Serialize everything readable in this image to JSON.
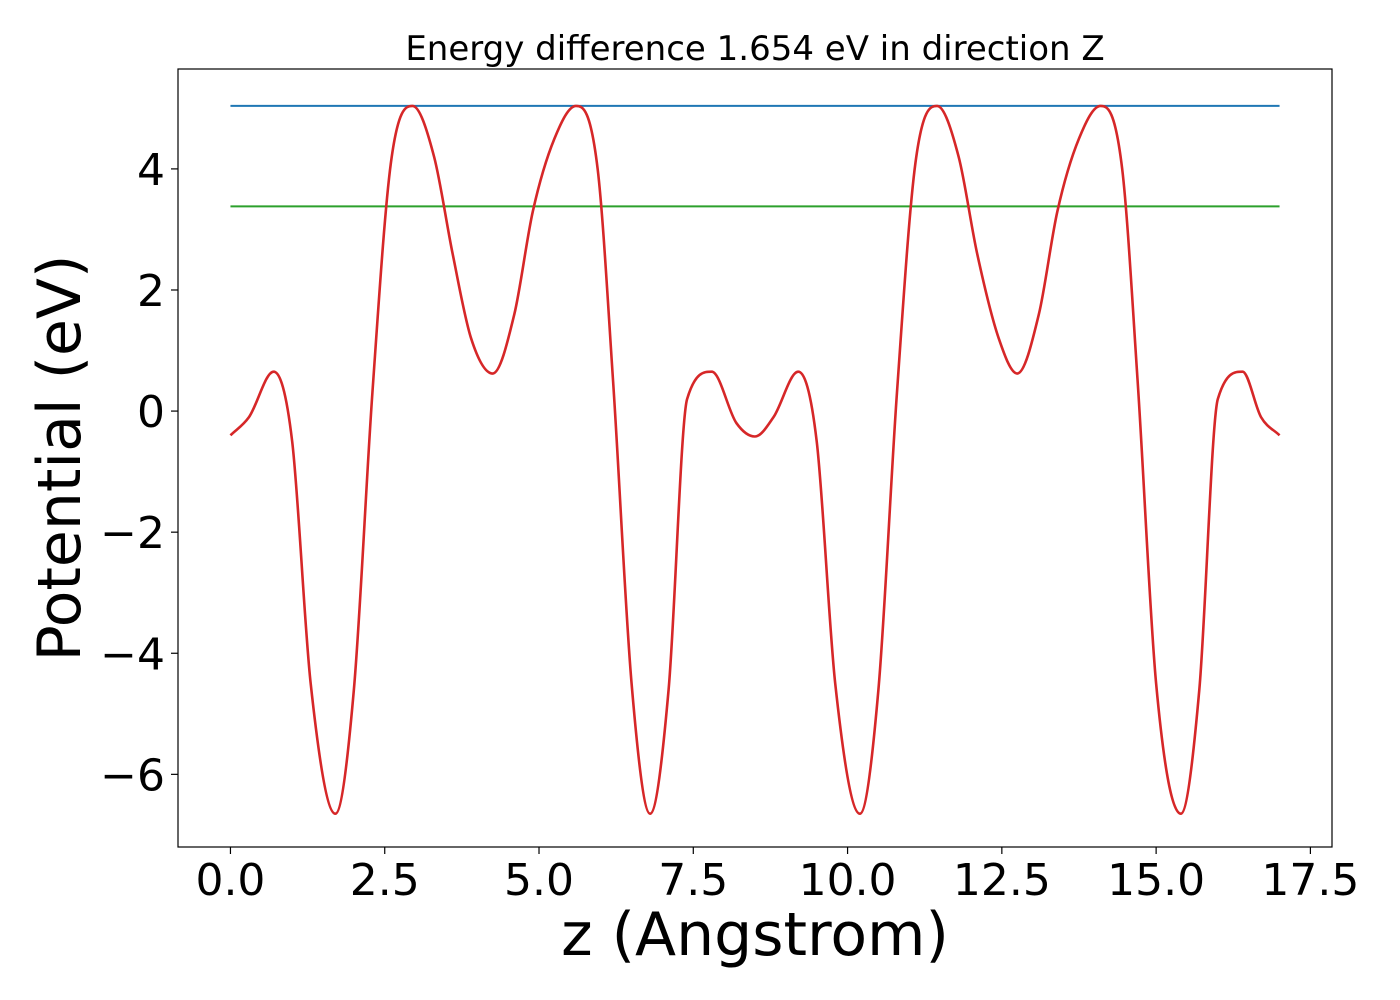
{
  "chart_data": {
    "type": "line",
    "title": "Energy difference 1.654 eV in direction Z",
    "xlabel": "z (Angstrom)",
    "ylabel": "Potential (eV)",
    "xlim": [
      -0.85,
      17.85
    ],
    "ylim": [
      -7.2,
      5.65
    ],
    "xticks": [
      0.0,
      2.5,
      5.0,
      7.5,
      10.0,
      12.5,
      15.0,
      17.5
    ],
    "xtick_labels": [
      "0.0",
      "2.5",
      "5.0",
      "7.5",
      "10.0",
      "12.5",
      "15.0",
      "17.5"
    ],
    "yticks": [
      -6,
      -4,
      -2,
      0,
      2,
      4
    ],
    "ytick_labels": [
      "−6",
      "−4",
      "−2",
      "0",
      "2",
      "4"
    ],
    "grid": false,
    "legend": "none",
    "x_range": [
      0.0,
      17.0
    ],
    "series": [
      {
        "color": "#1f77b4",
        "kind": "hline",
        "y": 5.04
      },
      {
        "color": "#2ca02c",
        "kind": "hline",
        "y": 3.38
      },
      {
        "color": "#d62728",
        "kind": "curve",
        "x": [
          0.0,
          0.3,
          0.7,
          1.0,
          1.3,
          1.7,
          2.0,
          2.3,
          2.6,
          2.95,
          3.3,
          3.6,
          3.9,
          4.25,
          4.6,
          4.9,
          5.25,
          5.6,
          5.95,
          6.2,
          6.5,
          6.8,
          7.1,
          7.4,
          7.8,
          8.2,
          8.5,
          8.8,
          9.2,
          9.5,
          9.8,
          10.2,
          10.5,
          10.8,
          11.1,
          11.45,
          11.8,
          12.1,
          12.45,
          12.75,
          13.1,
          13.4,
          13.75,
          14.1,
          14.45,
          14.7,
          15.0,
          15.4,
          15.7,
          16.0,
          16.4,
          16.7,
          17.0
        ],
        "y": [
          -0.4,
          -0.1,
          0.65,
          -0.5,
          -4.5,
          -6.65,
          -4.6,
          0.3,
          4.1,
          5.04,
          4.2,
          2.6,
          1.2,
          0.62,
          1.6,
          3.3,
          4.5,
          5.04,
          4.0,
          0.5,
          -4.5,
          -6.65,
          -4.6,
          0.2,
          0.65,
          -0.2,
          -0.42,
          -0.1,
          0.65,
          -0.5,
          -4.5,
          -6.65,
          -4.6,
          0.3,
          4.1,
          5.04,
          4.2,
          2.6,
          1.2,
          0.62,
          1.6,
          3.3,
          4.5,
          5.04,
          4.0,
          0.5,
          -4.5,
          -6.65,
          -4.6,
          0.2,
          0.65,
          -0.1,
          -0.4
        ]
      }
    ]
  }
}
